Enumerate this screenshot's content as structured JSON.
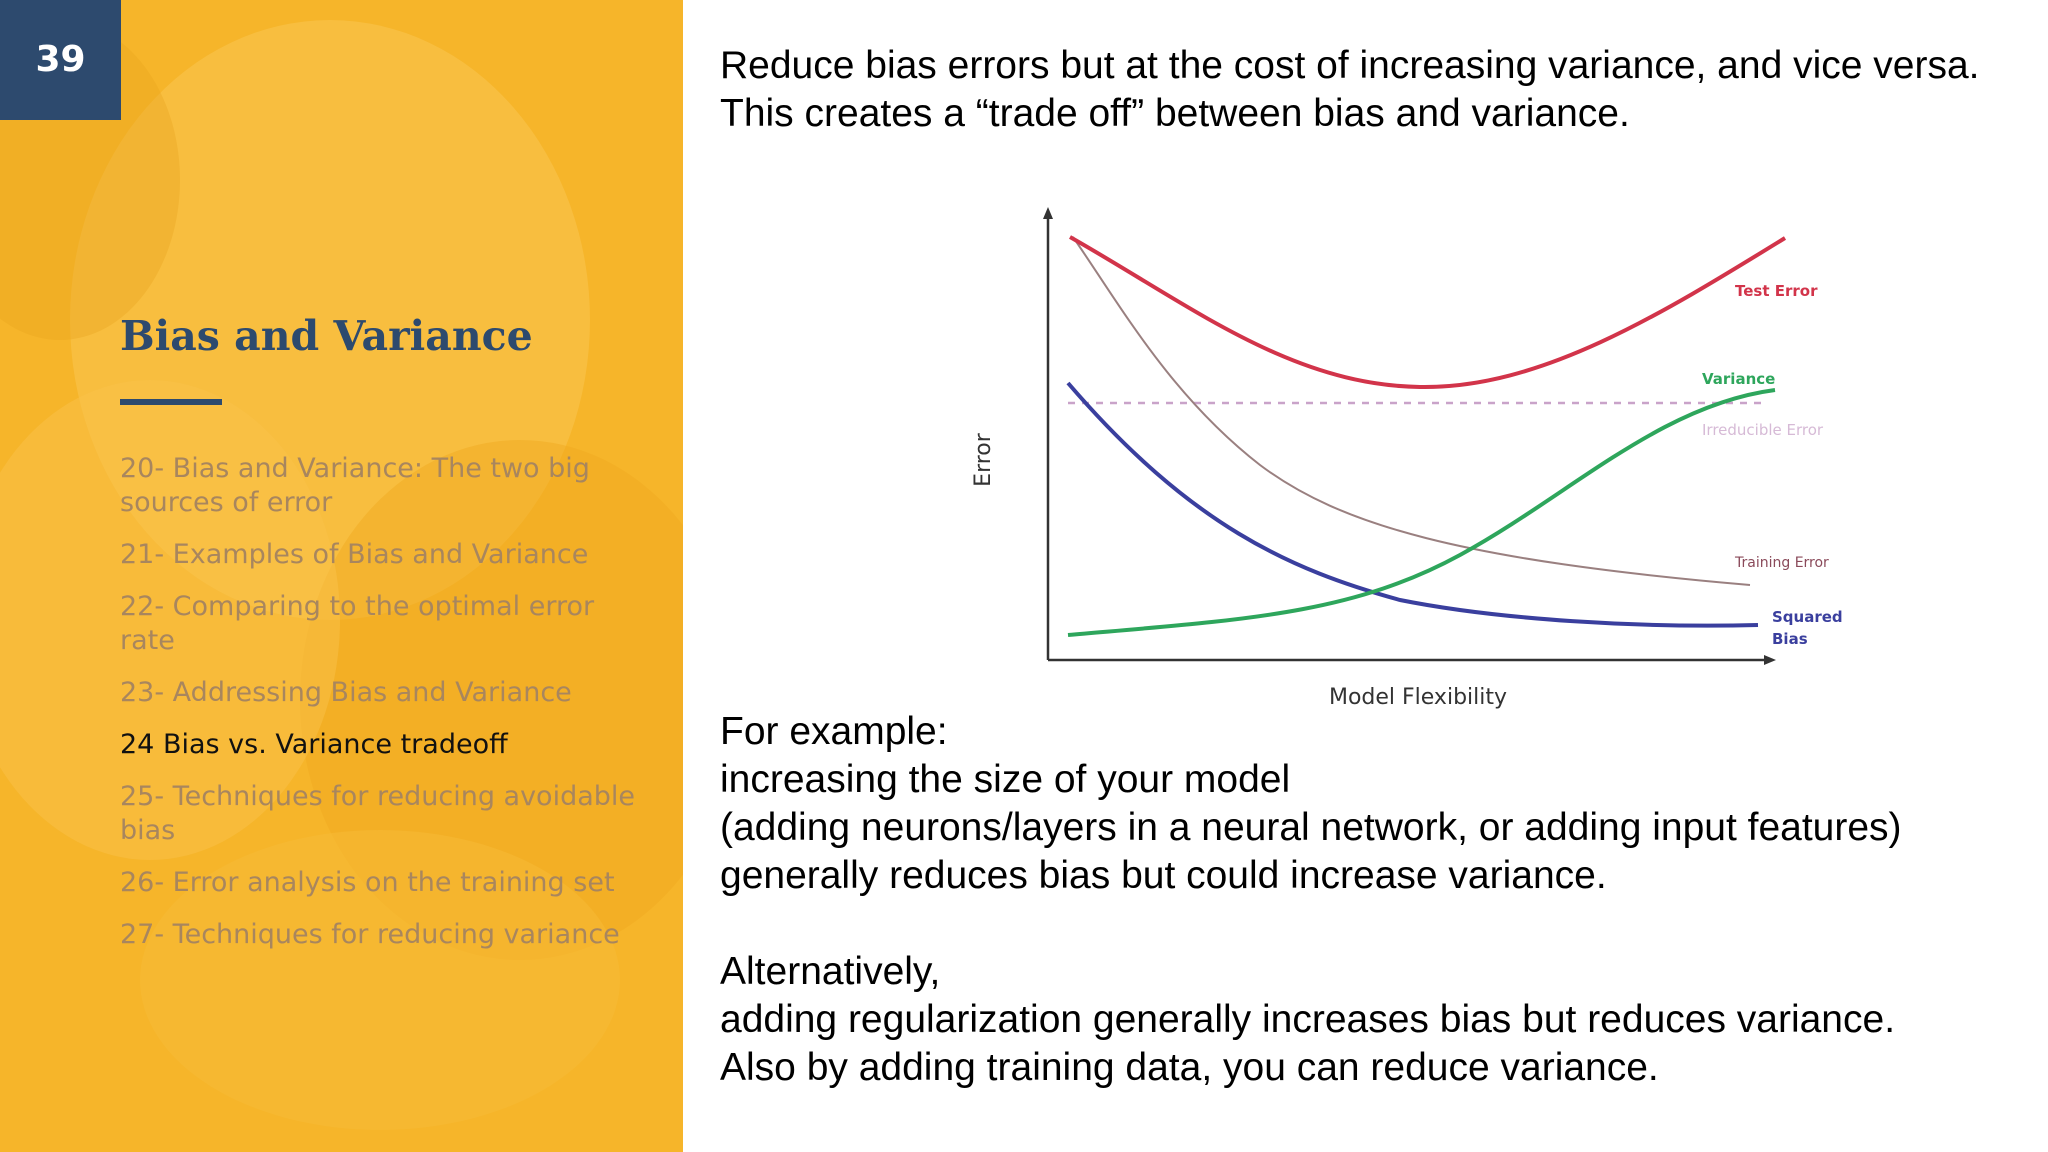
{
  "slide": {
    "number": "39"
  },
  "sidebar": {
    "title": "Bias and Variance",
    "items": [
      {
        "label": "20- Bias and Variance: The two big sources of error",
        "active": false
      },
      {
        "label": "21- Examples of Bias and Variance",
        "active": false
      },
      {
        "label": "22- Comparing to the optimal error rate",
        "active": false
      },
      {
        "label": "23- Addressing Bias and Variance",
        "active": false
      },
      {
        "label": "24 Bias vs. Variance tradeoff",
        "active": true
      },
      {
        "label": "25- Techniques for reducing avoidable bias",
        "active": false
      },
      {
        "label": "26- Error analysis on the training set",
        "active": false
      },
      {
        "label": "27- Techniques for reducing variance",
        "active": false
      }
    ]
  },
  "main": {
    "intro_lines": [
      "Reduce bias errors but at the cost of increasing variance, and vice versa.",
      "This creates a “trade off” between bias and variance."
    ],
    "example_lines": [
      "For example:",
      "increasing the size of your model",
      "(adding neurons/layers in a neural network, or adding input features)",
      "generally reduces bias but could increase variance."
    ],
    "alternative_lines": [
      "Alternatively,",
      "adding regularization generally increases bias but reduces variance.",
      "Also by adding training data, you can reduce variance."
    ]
  },
  "diagram": {
    "x_axis_label": "Model Flexibility",
    "y_axis_label": "Error",
    "curves": {
      "test_error": {
        "label": "Test Error",
        "color": "#d2344a"
      },
      "variance": {
        "label": "Variance",
        "color": "#2ea65c"
      },
      "irreducible_error": {
        "label": "Irreducible Error",
        "color": "#c9a3c9"
      },
      "training_error": {
        "label": "Training Error",
        "color": "#9a8080"
      },
      "squared_bias": {
        "label_line1": "Squared",
        "label_line2": "Bias",
        "color": "#3a3f9e"
      }
    }
  }
}
